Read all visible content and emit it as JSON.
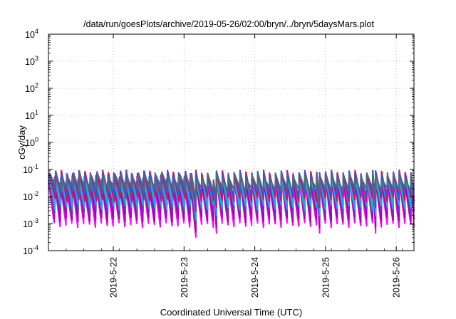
{
  "chart_data": {
    "type": "line",
    "title": "/data/run/goesPlots/archive/2019-05-26/02:00/bryn/../bryn/5daysMars.plot",
    "xlabel": "Coordinated Universal Time (UTC)",
    "ylabel": "cGy/day",
    "yscale": "log",
    "ylim": [
      0.0001,
      10000
    ],
    "xlim": [
      "2019-05-21T02:00",
      "2019-05-26T06:00"
    ],
    "x_ticks": [
      "2019-5-22",
      "2019-5-23",
      "2019-5-24",
      "2019-5-25",
      "2019-5-26"
    ],
    "y_ticks": [
      {
        "base": "10",
        "exp": "-4"
      },
      {
        "base": "10",
        "exp": "-3"
      },
      {
        "base": "10",
        "exp": "-2"
      },
      {
        "base": "10",
        "exp": "-1"
      },
      {
        "base": "10",
        "exp": "0"
      },
      {
        "base": "10",
        "exp": "1"
      },
      {
        "base": "10",
        "exp": "2"
      },
      {
        "base": "10",
        "exp": "3"
      },
      {
        "base": "10",
        "exp": "4"
      }
    ],
    "grid": true,
    "legend": "none",
    "sawtooth_period_hours": 2,
    "series": [
      {
        "color": "#ff00ff",
        "peak": 0.035,
        "trough": 0.0009
      },
      {
        "color": "#aa00aa",
        "peak": 0.045,
        "trough": 0.0014
      },
      {
        "color": "#6633cc",
        "peak": 0.06,
        "trough": 0.0025
      },
      {
        "color": "#00bbbb",
        "peak": 0.05,
        "trough": 0.004
      },
      {
        "color": "#3399ff",
        "peak": 0.065,
        "trough": 0.006
      },
      {
        "color": "#dd1144",
        "peak": 0.075,
        "trough": 0.008
      },
      {
        "color": "#3355dd",
        "peak": 0.07,
        "trough": 0.012
      },
      {
        "color": "#556677",
        "peak": 0.06,
        "trough": 0.018
      }
    ],
    "gaps": [
      {
        "start": "2019-05-23T01:00",
        "end": "2019-05-23T04:00",
        "peak": 0.07,
        "trough_scale": 0.35
      },
      {
        "start": "2019-05-23T09:00",
        "end": "2019-05-23T11:00",
        "peak": 0.04,
        "trough_scale": 0.5
      },
      {
        "start": "2019-05-24T20:00",
        "end": "2019-05-24T22:00",
        "peak": 0.08,
        "trough_scale": 0.5
      },
      {
        "start": "2019-05-25T15:00",
        "end": "2019-05-25T17:00",
        "peak": 0.09,
        "trough_scale": 0.5
      }
    ]
  }
}
